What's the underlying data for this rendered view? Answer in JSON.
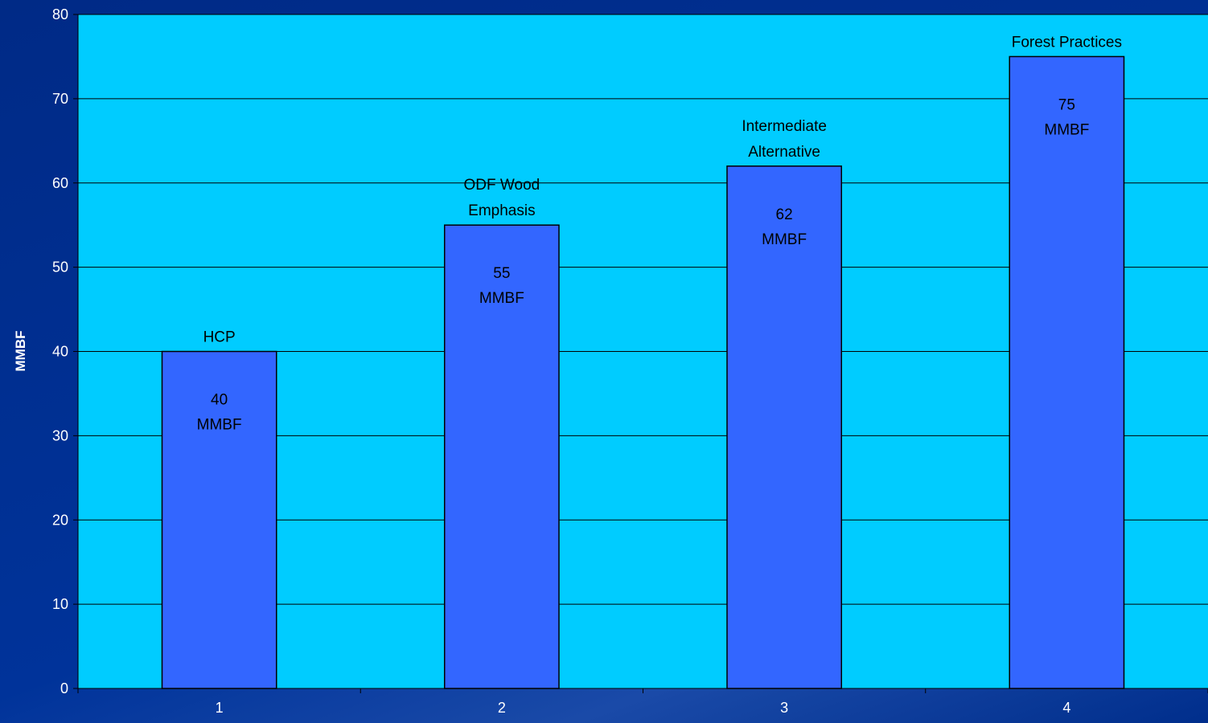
{
  "chart_data": {
    "type": "bar",
    "categories": [
      "1",
      "2",
      "3",
      "4"
    ],
    "values": [
      40,
      55,
      62,
      75
    ],
    "category_labels": [
      [
        "HCP"
      ],
      [
        "ODF Wood",
        "Emphasis"
      ],
      [
        "Intermediate",
        "Alternative"
      ],
      [
        "Forest Practices"
      ]
    ],
    "data_labels": [
      [
        "40",
        "MMBF"
      ],
      [
        "55",
        "MMBF"
      ],
      [
        "62",
        "MMBF"
      ],
      [
        "75",
        "MMBF"
      ]
    ],
    "title": "",
    "xlabel": "",
    "ylabel": "MMBF",
    "ylim": [
      0,
      80
    ],
    "yticks": [
      0,
      10,
      20,
      30,
      40,
      50,
      60,
      70,
      80
    ],
    "grid": true,
    "legend": "none",
    "colors": {
      "plot_background": "#00CCFF",
      "bar_fill": "#3366FF",
      "bar_stroke": "#000000",
      "slide_background": "#003399",
      "text": "#FFFFFF"
    }
  }
}
